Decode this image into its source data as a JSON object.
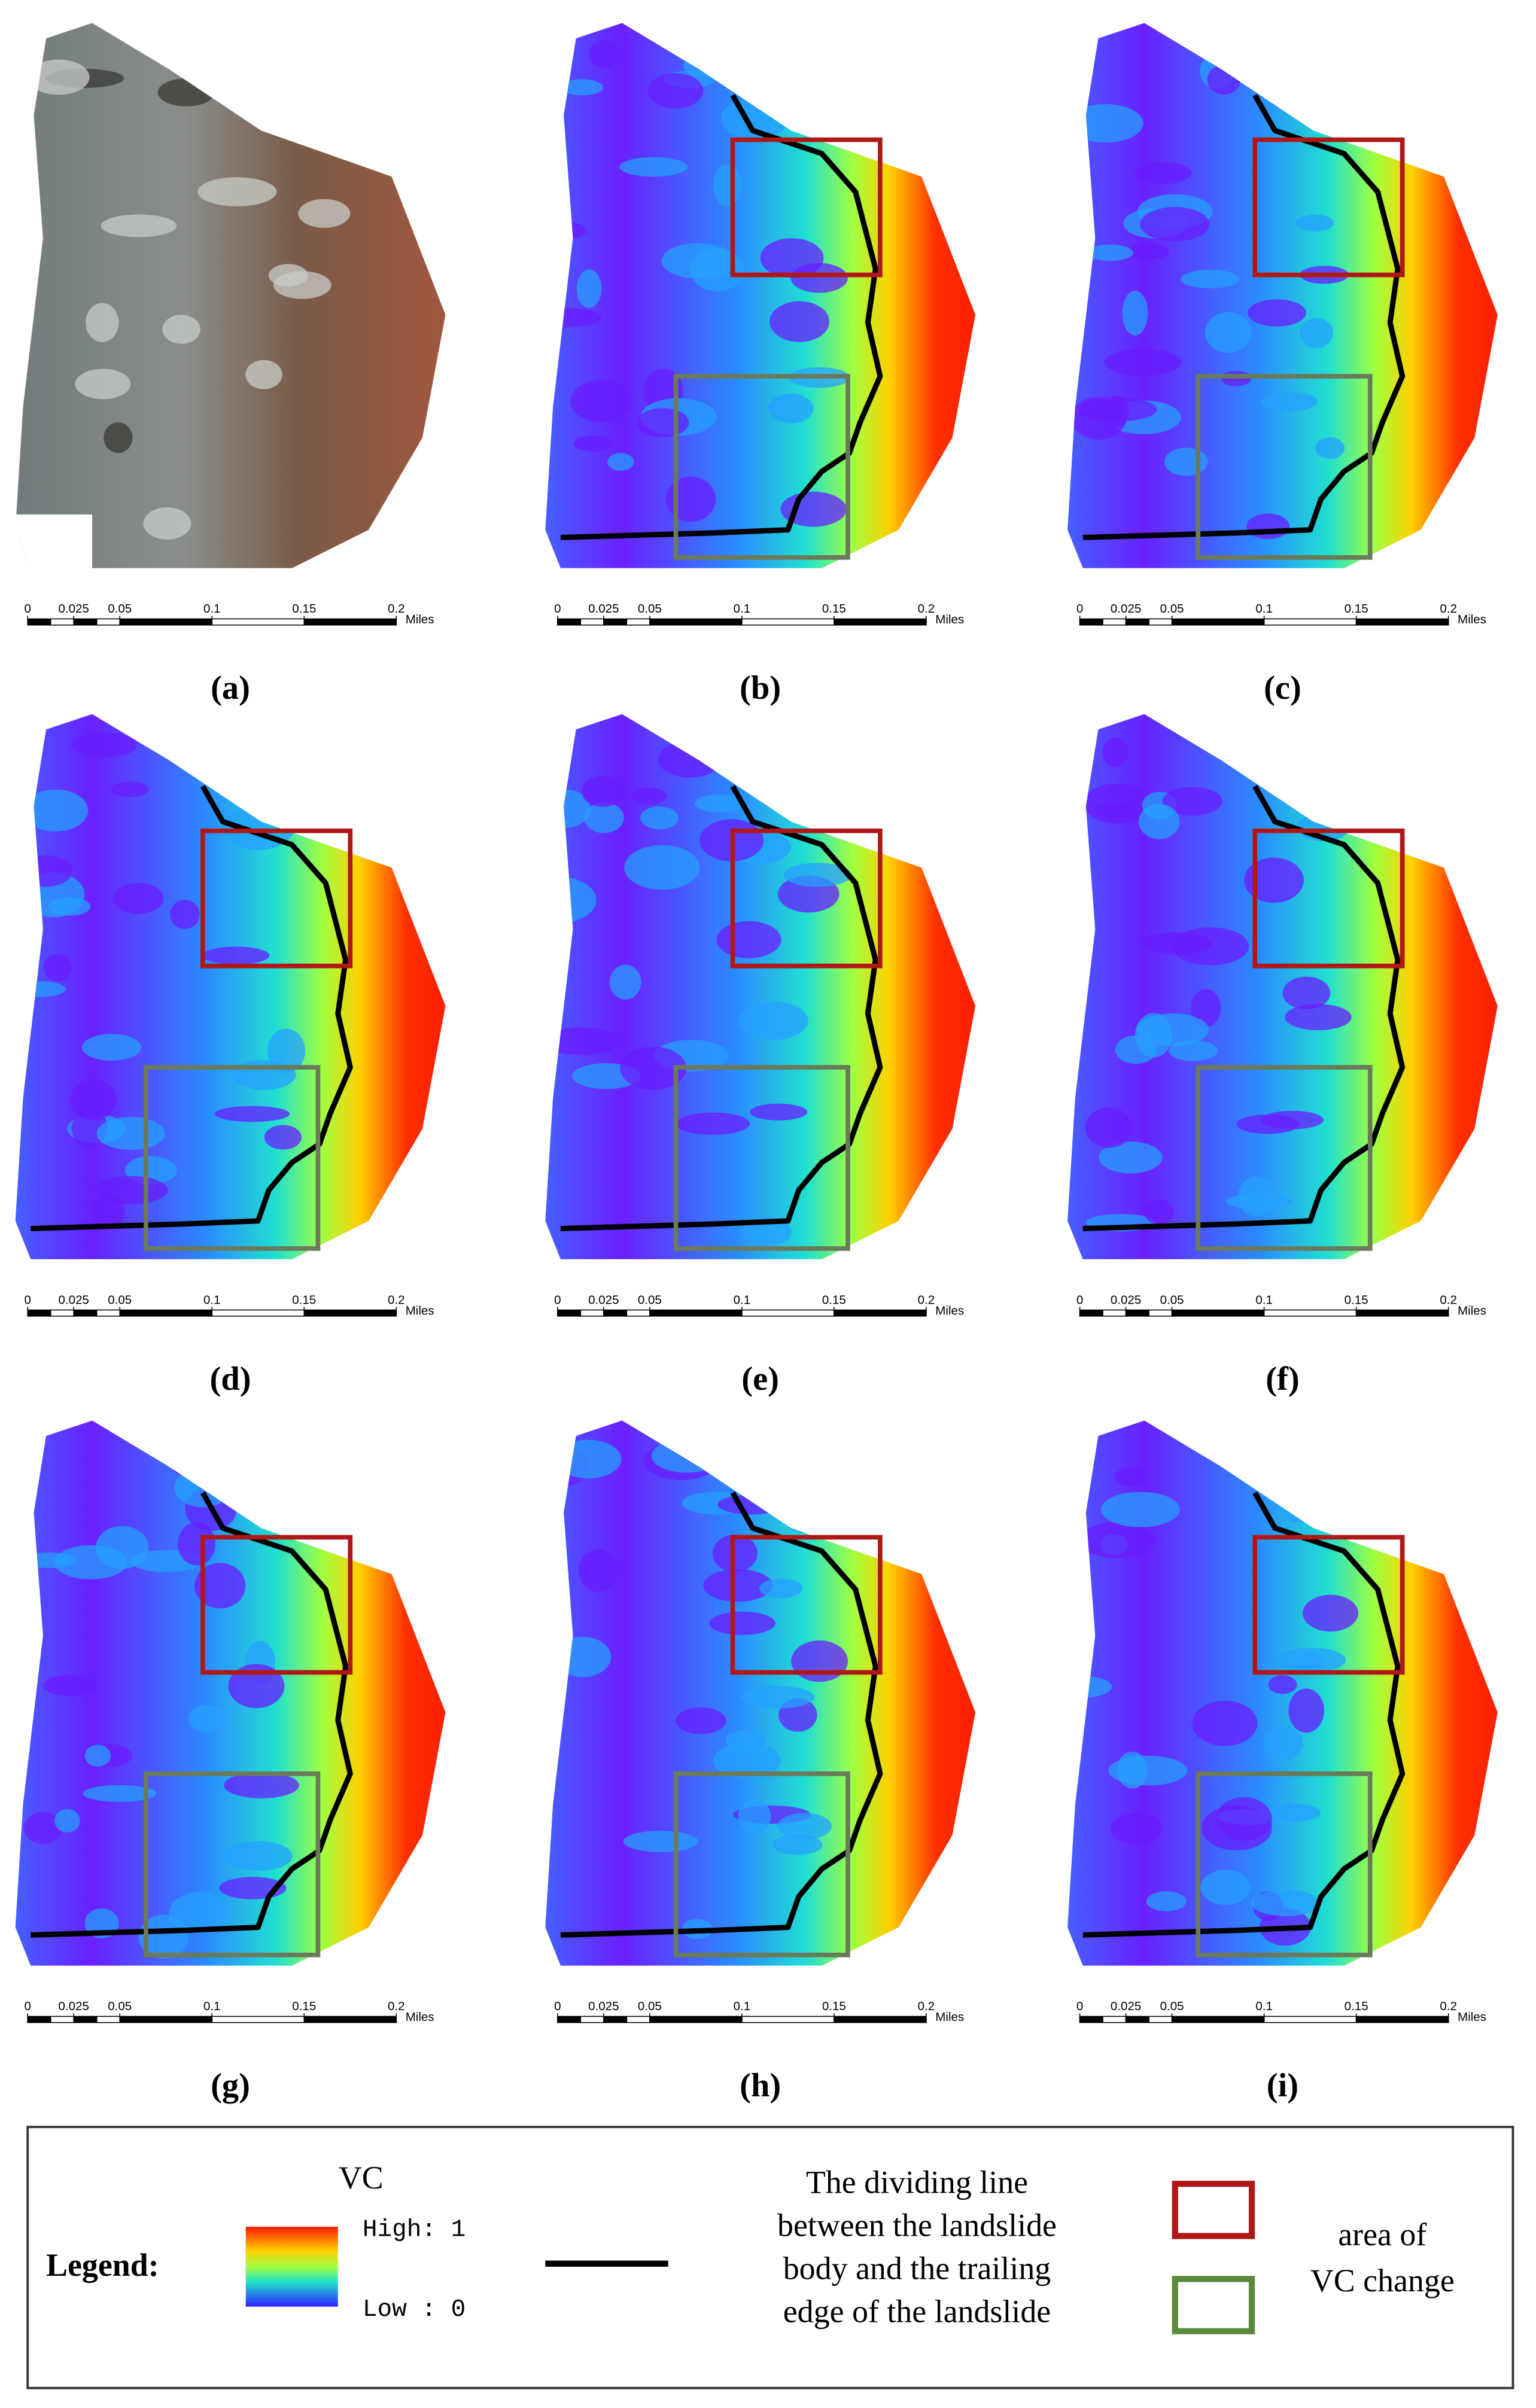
{
  "panels": [
    {
      "label": "(a)"
    },
    {
      "label": "(b)"
    },
    {
      "label": "(c)"
    },
    {
      "label": "(d)"
    },
    {
      "label": "(e)"
    },
    {
      "label": "(f)"
    },
    {
      "label": "(g)"
    },
    {
      "label": "(h)"
    },
    {
      "label": "(i)"
    }
  ],
  "scale_bar": {
    "ticks": [
      0,
      0.025,
      0.05,
      0.1,
      0.15,
      0.2
    ],
    "unit": "Miles"
  },
  "legend": {
    "title": "Legend:",
    "colorbar_title": "VC",
    "high": "High: 1",
    "low": "Low : 0",
    "line_text": [
      "The dividing line",
      "between the landslide",
      "body and the trailing",
      "edge of the landslide"
    ],
    "box_text": [
      "area of",
      "VC change"
    ]
  }
}
